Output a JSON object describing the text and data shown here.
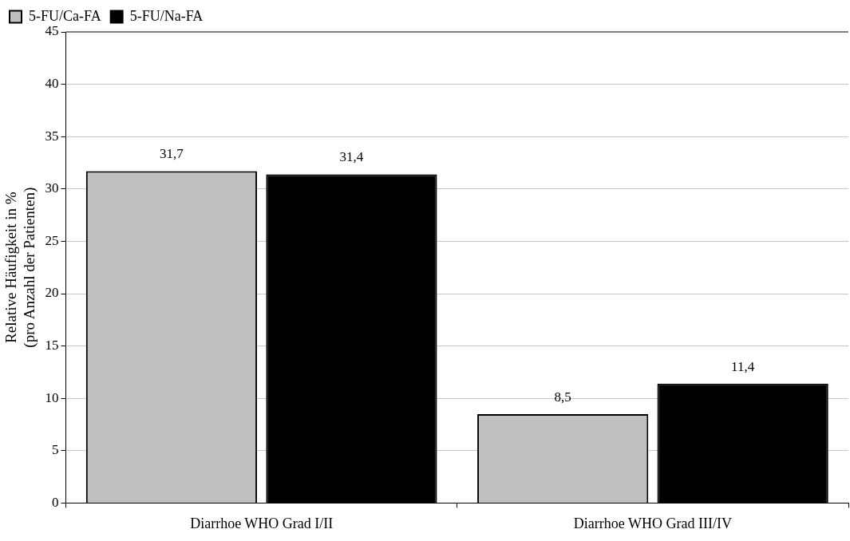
{
  "chart_data": {
    "type": "bar",
    "ylabel": "Relative Häufigkeit in %\n(pro Anzahl der Patienten)",
    "categories": [
      "Diarrhoe WHO Grad I/II",
      "Diarrhoe WHO Grad III/IV"
    ],
    "series": [
      {
        "name": "5-FU/Ca-FA",
        "color": "#c0c0c0",
        "values": [
          31.7,
          8.5
        ],
        "value_labels": [
          "31,7",
          "8,5"
        ]
      },
      {
        "name": "5-FU/Na-FA",
        "color": "#000000",
        "values": [
          31.4,
          11.4
        ],
        "value_labels": [
          "31,4",
          "11,4"
        ]
      }
    ],
    "ylim": [
      0,
      45
    ],
    "yticks": [
      0,
      5,
      10,
      15,
      20,
      25,
      30,
      35,
      40,
      45
    ],
    "grid": "y",
    "legend": "top left"
  }
}
